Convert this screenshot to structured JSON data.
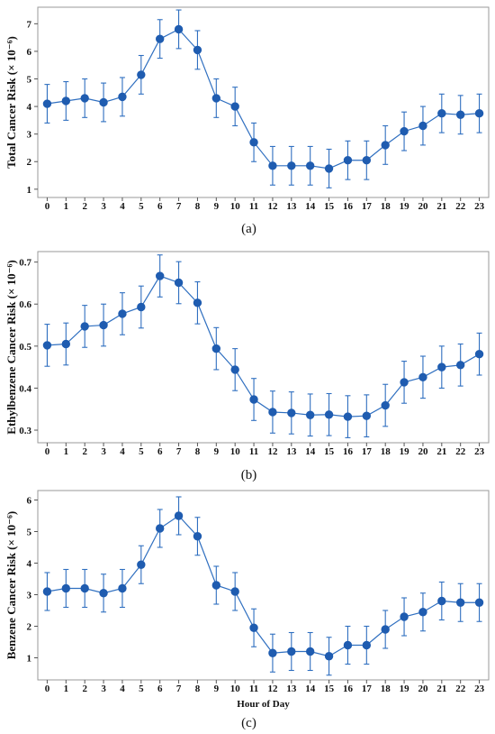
{
  "chart_data": [
    {
      "type": "line",
      "panel_label": "(a)",
      "ylabel": "Total Cancer Risk (× 10⁻⁶)",
      "xlabel": "",
      "ylim": [
        0.7,
        7.6
      ],
      "yticks": [
        1,
        2,
        3,
        4,
        5,
        6,
        7
      ],
      "xlim": [
        -0.5,
        23.5
      ],
      "x": [
        0,
        1,
        2,
        3,
        4,
        5,
        6,
        7,
        8,
        9,
        10,
        11,
        12,
        13,
        14,
        15,
        16,
        17,
        18,
        19,
        20,
        21,
        22,
        23
      ],
      "series": [
        {
          "values": [
            4.1,
            4.2,
            4.3,
            4.15,
            4.35,
            5.15,
            6.45,
            6.8,
            6.05,
            4.3,
            4.0,
            2.7,
            1.85,
            1.85,
            1.85,
            1.75,
            2.05,
            2.05,
            2.6,
            3.1,
            3.3,
            3.75,
            3.7,
            3.75
          ],
          "error": [
            0.7,
            0.7,
            0.7,
            0.7,
            0.7,
            0.7,
            0.7,
            0.7,
            0.7,
            0.7,
            0.7,
            0.7,
            0.7,
            0.7,
            0.7,
            0.7,
            0.7,
            0.7,
            0.7,
            0.7,
            0.7,
            0.7,
            0.7,
            0.7
          ]
        }
      ],
      "grid": false
    },
    {
      "type": "line",
      "panel_label": "(b)",
      "ylabel": "Ethylbenzene  Cancer Risk (× 10⁻⁶)",
      "xlabel": "",
      "ylim": [
        0.27,
        0.725
      ],
      "yticks": [
        0.3,
        0.4,
        0.5,
        0.6,
        0.7
      ],
      "xlim": [
        -0.5,
        23.5
      ],
      "x": [
        0,
        1,
        2,
        3,
        4,
        5,
        6,
        7,
        8,
        9,
        10,
        11,
        12,
        13,
        14,
        15,
        16,
        17,
        18,
        19,
        20,
        21,
        22,
        23
      ],
      "series": [
        {
          "values": [
            0.502,
            0.505,
            0.547,
            0.55,
            0.577,
            0.593,
            0.667,
            0.651,
            0.603,
            0.494,
            0.444,
            0.373,
            0.343,
            0.341,
            0.336,
            0.337,
            0.332,
            0.334,
            0.359,
            0.414,
            0.426,
            0.45,
            0.455,
            0.481
          ],
          "error": [
            0.05,
            0.05,
            0.05,
            0.05,
            0.05,
            0.05,
            0.05,
            0.05,
            0.05,
            0.05,
            0.05,
            0.05,
            0.05,
            0.05,
            0.05,
            0.05,
            0.05,
            0.05,
            0.05,
            0.05,
            0.05,
            0.05,
            0.05,
            0.05
          ]
        }
      ],
      "grid": false
    },
    {
      "type": "line",
      "panel_label": "(c)",
      "ylabel": "Benzene Cancer Risk (× 10⁻⁶)",
      "xlabel": "Hour of Day",
      "ylim": [
        0.3,
        6.3
      ],
      "yticks": [
        1,
        2,
        3,
        4,
        5,
        6
      ],
      "xlim": [
        -0.5,
        23.5
      ],
      "x": [
        0,
        1,
        2,
        3,
        4,
        5,
        6,
        7,
        8,
        9,
        10,
        11,
        12,
        13,
        14,
        15,
        16,
        17,
        18,
        19,
        20,
        21,
        22,
        23
      ],
      "series": [
        {
          "values": [
            3.1,
            3.2,
            3.2,
            3.05,
            3.2,
            3.95,
            5.1,
            5.5,
            4.85,
            3.3,
            3.1,
            1.95,
            1.15,
            1.2,
            1.2,
            1.05,
            1.4,
            1.4,
            1.9,
            2.3,
            2.45,
            2.8,
            2.75,
            2.75
          ],
          "error": [
            0.6,
            0.6,
            0.6,
            0.6,
            0.6,
            0.6,
            0.6,
            0.6,
            0.6,
            0.6,
            0.6,
            0.6,
            0.6,
            0.6,
            0.6,
            0.6,
            0.6,
            0.6,
            0.6,
            0.6,
            0.6,
            0.6,
            0.6,
            0.6
          ]
        }
      ],
      "grid": false
    }
  ],
  "colors": {
    "series": "#2f6fc0",
    "marker": "#1f5cb0",
    "frame": "#9a9a9a"
  }
}
